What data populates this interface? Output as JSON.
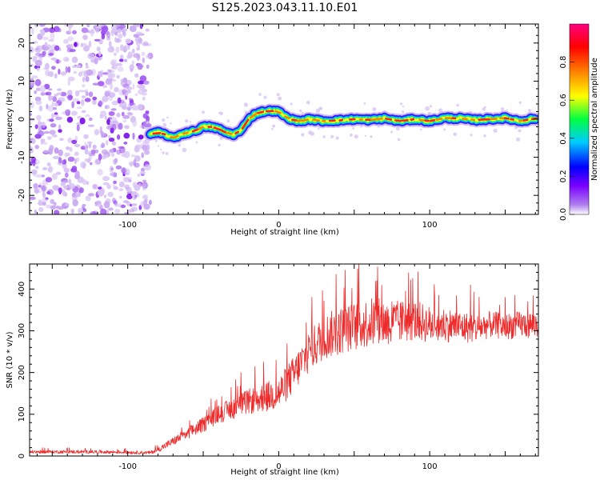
{
  "figure_title": "S125.2023.043.11.10.E01",
  "chart_data": [
    {
      "type": "heatmap",
      "title": "",
      "xlabel": "Height of straight line (km)",
      "ylabel": "Frequency (Hz)",
      "xlim": [
        -165,
        172
      ],
      "ylim": [
        -25,
        25
      ],
      "xticks": [
        -100,
        0,
        100
      ],
      "yticks": [
        -20,
        -10,
        0,
        10,
        20
      ],
      "noise_region_x": [
        -165,
        -85
      ],
      "ridge": {
        "x": [
          -85,
          -80,
          -75,
          -70,
          -65,
          -60,
          -55,
          -50,
          -45,
          -40,
          -35,
          -30,
          -25,
          -20,
          -15,
          -10,
          -5,
          0,
          5,
          10,
          15,
          20,
          30,
          40,
          50,
          60,
          70,
          80,
          90,
          100,
          110,
          120,
          130,
          140,
          150,
          160,
          170
        ],
        "y": [
          -4,
          -3.5,
          -4,
          -5,
          -4,
          -3.5,
          -3,
          -2,
          -2,
          -2.5,
          -3.5,
          -4,
          -3,
          0,
          1.5,
          2,
          2.2,
          2,
          0.5,
          -0.3,
          -0.5,
          0,
          -0.5,
          -0.3,
          0,
          -0.2,
          0.2,
          -0.5,
          0,
          -0.5,
          0.3,
          0.2,
          -0.2,
          0,
          0.3,
          -0.5,
          0.2
        ]
      },
      "colorbar": {
        "label": "Normalized spectral amplitude",
        "range": [
          0,
          1
        ],
        "ticks": [
          "0.0",
          "0.2",
          "0.4",
          "0.6",
          "0.8"
        ],
        "colors": [
          "#ffffff",
          "#b080ee",
          "#7a00ff",
          "#0000ff",
          "#00ccff",
          "#00ff40",
          "#ffff00",
          "#ff8000",
          "#ff0000",
          "#ff0080"
        ]
      }
    },
    {
      "type": "line",
      "title": "",
      "xlabel": "Height of straight line (km)",
      "ylabel": "SNR (10 * v/v)",
      "xlim": [
        -165,
        172
      ],
      "ylim": [
        0,
        460
      ],
      "xticks": [
        -100,
        0,
        100
      ],
      "yticks": [
        0,
        100,
        200,
        300,
        400
      ],
      "color": "#ee2a2a",
      "trend": {
        "x": [
          -165,
          -120,
          -85,
          -80,
          -75,
          -70,
          -65,
          -60,
          -50,
          -40,
          -30,
          -20,
          -10,
          0,
          10,
          20,
          30,
          40,
          50,
          60,
          70,
          80,
          90,
          100,
          110,
          120,
          130,
          140,
          150,
          160,
          172
        ],
        "y": [
          10,
          10,
          8,
          15,
          25,
          35,
          45,
          55,
          75,
          100,
          115,
          130,
          140,
          150,
          195,
          250,
          285,
          300,
          310,
          320,
          320,
          320,
          325,
          315,
          315,
          310,
          305,
          315,
          310,
          315,
          315
        ]
      },
      "noise_amplitude": {
        "x": [
          -165,
          -85,
          -70,
          -40,
          -10,
          10,
          30,
          60,
          100,
          140,
          172
        ],
        "y": [
          4,
          4,
          10,
          22,
          35,
          45,
          55,
          60,
          45,
          32,
          32
        ]
      },
      "peaks": [
        [
          -59,
          85
        ],
        [
          -41,
          135
        ],
        [
          -25,
          200
        ],
        [
          -10,
          225
        ],
        [
          22,
          380
        ],
        [
          38,
          435
        ],
        [
          44,
          445
        ],
        [
          53,
          460
        ],
        [
          65,
          420
        ],
        [
          75,
          370
        ],
        [
          84,
          395
        ],
        [
          106,
          385
        ],
        [
          127,
          410
        ],
        [
          150,
          380
        ],
        [
          165,
          370
        ]
      ]
    }
  ]
}
